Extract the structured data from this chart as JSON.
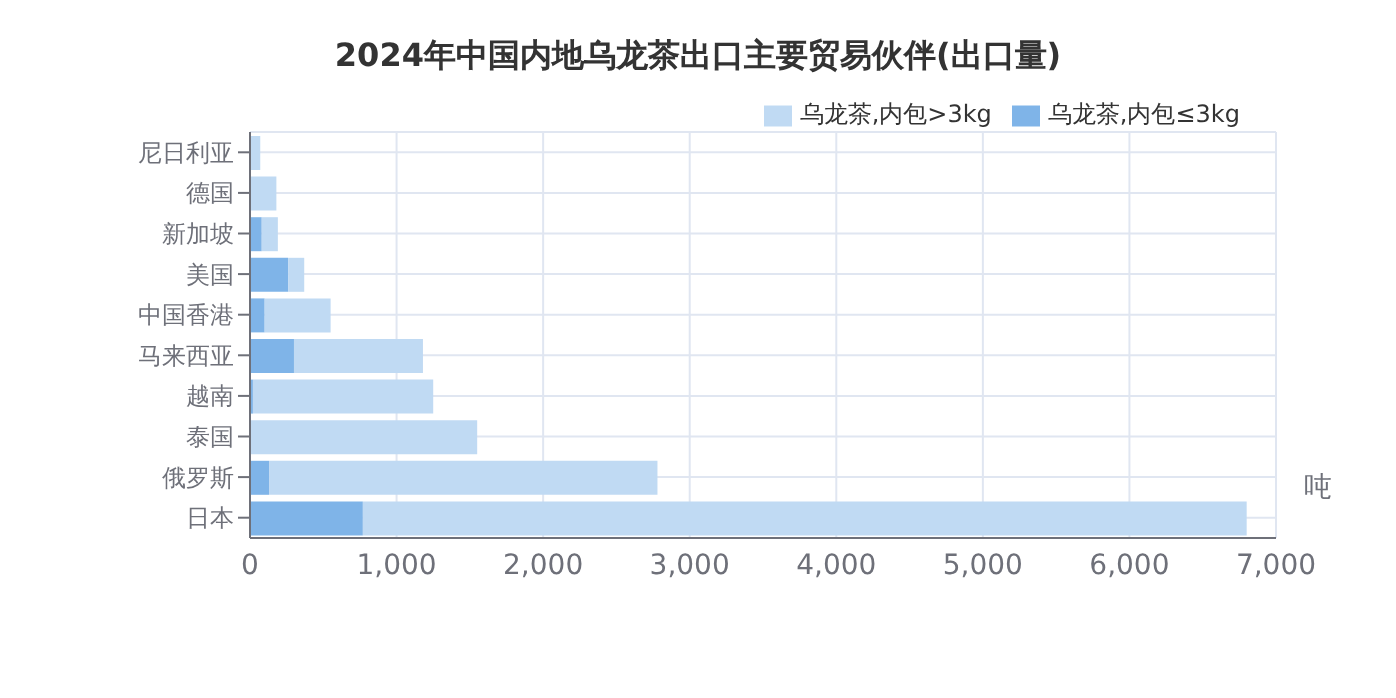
{
  "chart_data": {
    "type": "bar",
    "title": "2024年中国内地乌龙茶出口主要贸易伙伴(出口量)",
    "orientation": "horizontal",
    "stacked": true,
    "xlabel": "吨",
    "categories": [
      "尼日利亚",
      "德国",
      "新加坡",
      "美国",
      "中国香港",
      "马来西亚",
      "越南",
      "泰国",
      "俄罗斯",
      "日本"
    ],
    "series": [
      {
        "name": "乌龙茶,内包≤3kg",
        "color": "#7fb4e8",
        "values": [
          0,
          0,
          80,
          260,
          100,
          300,
          20,
          0,
          130,
          770
        ]
      },
      {
        "name": "乌龙茶,内包>3kg",
        "color": "#c0daf3",
        "values": [
          70,
          180,
          110,
          110,
          450,
          880,
          1230,
          1550,
          2650,
          6030
        ]
      }
    ],
    "xlim": [
      0,
      7000
    ],
    "xticks": [
      {
        "value": 0,
        "label": "0"
      },
      {
        "value": 1000,
        "label": "1,000"
      },
      {
        "value": 2000,
        "label": "2,000"
      },
      {
        "value": 3000,
        "label": "3,000"
      },
      {
        "value": 4000,
        "label": "4,000"
      },
      {
        "value": 5000,
        "label": "5,000"
      },
      {
        "value": 6000,
        "label": "6,000"
      },
      {
        "value": 7000,
        "label": "7,000"
      }
    ],
    "grid": true,
    "legend": "top right"
  }
}
